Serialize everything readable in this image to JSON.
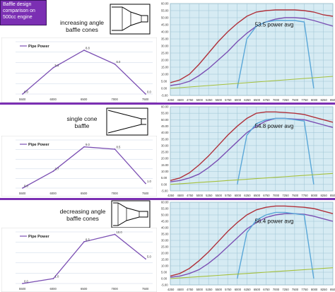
{
  "title_box": {
    "lines": [
      "Baffle design",
      "comparison on",
      "500cc engine"
    ]
  },
  "colors": {
    "purple": "#7b4fb3",
    "divider": "#7b2fb3",
    "red": "#b0303a",
    "blue": "#3f8fca",
    "lightblue": "#5aa7d8",
    "green": "#a5c03c",
    "rightbg": "#d6ebf3",
    "leftgrid": "#c9d4e6"
  },
  "sections": [
    {
      "label_lines": [
        "increasing angle",
        "baffle cones"
      ],
      "cone_icon": "increasing-angle-cone-icon",
      "annotation": "53.5 power avg",
      "left_chart": {
        "type": "line",
        "legend": "Pipe Power",
        "categories": [
          "5500",
          "6000",
          "6500",
          "7000",
          "7500"
        ],
        "values": [
          0.0,
          5.3,
          8.8,
          6.0,
          0.0
        ],
        "value_labels": [
          "0.0",
          "5.3",
          "8.8",
          "6.0",
          "0.0"
        ]
      }
    },
    {
      "label_lines": [
        "single cone",
        "baffle"
      ],
      "cone_icon": "single-cone-icon",
      "annotation": "54.8 power avg",
      "left_chart": {
        "type": "line",
        "legend": "Pipe Power",
        "categories": [
          "5500",
          "6000",
          "6500",
          "7000",
          "7500"
        ],
        "values": [
          0.0,
          3.7,
          9.0,
          8.5,
          1.0
        ],
        "value_labels": [
          "0.0",
          "3.7",
          "9.0",
          "8.5",
          "1.0"
        ]
      }
    },
    {
      "label_lines": [
        "decreasing angle",
        "baffle cones"
      ],
      "cone_icon": "decreasing-angle-cone-icon",
      "annotation": "56.4 power avg",
      "left_chart": {
        "type": "line",
        "legend": "Pipe Power",
        "categories": [
          "5500",
          "6000",
          "6500",
          "7000",
          "7500"
        ],
        "values": [
          0.0,
          1.0,
          8.5,
          10.0,
          5.0
        ],
        "value_labels": [
          "0.0",
          "1.0",
          "8.5",
          "10.0",
          "5.0"
        ]
      }
    }
  ],
  "right_chart_axis": {
    "y_ticks": [
      "60.00",
      "55.00",
      "50.00",
      "45.00",
      "40.00",
      "35.00",
      "30.00",
      "25.00",
      "20.00",
      "15.00",
      "10.00",
      "5.00",
      "0.00",
      "-5.00"
    ],
    "x_ticks": [
      "4250",
      "4500",
      "4750",
      "5000",
      "5250",
      "5500",
      "5750",
      "6000",
      "6250",
      "6500",
      "6750",
      "7000",
      "7250",
      "7500",
      "7750",
      "8000",
      "8250",
      "8500"
    ]
  },
  "chart_data": [
    {
      "type": "line",
      "title": "",
      "legend": [
        "Pipe Power"
      ],
      "categories": [
        "5500",
        "6000",
        "6500",
        "7000",
        "7500"
      ],
      "series": [
        {
          "name": "Pipe Power",
          "values": [
            0.0,
            5.3,
            8.8,
            6.0,
            0.0
          ]
        }
      ]
    },
    {
      "type": "line",
      "title": "",
      "legend": [
        "Pipe Power"
      ],
      "categories": [
        "5500",
        "6000",
        "6500",
        "7000",
        "7500"
      ],
      "series": [
        {
          "name": "Pipe Power",
          "values": [
            0.0,
            3.7,
            9.0,
            8.5,
            1.0
          ]
        }
      ]
    },
    {
      "type": "line",
      "title": "",
      "legend": [
        "Pipe Power"
      ],
      "categories": [
        "5500",
        "6000",
        "6500",
        "7000",
        "7500"
      ],
      "series": [
        {
          "name": "Pipe Power",
          "values": [
            0.0,
            1.0,
            8.5,
            10.0,
            5.0
          ]
        }
      ]
    },
    {
      "type": "line",
      "annotation": "53.5 power avg",
      "x": [
        4250,
        4500,
        4750,
        5000,
        5250,
        5500,
        5750,
        6000,
        6250,
        6500,
        6750,
        7000,
        7250,
        7500,
        7750,
        8000,
        8250,
        8500
      ],
      "ylim": [
        -5,
        60
      ],
      "series": [
        {
          "values": [
            4,
            6,
            10,
            17,
            25,
            33,
            40,
            46,
            51,
            54,
            55,
            55.5,
            55.5,
            55.5,
            55,
            54,
            52,
            51
          ]
        },
        {
          "values": [
            2,
            3,
            5,
            9,
            14,
            20,
            26,
            33,
            39,
            44,
            47,
            49,
            50,
            50,
            49.5,
            48,
            46,
            44
          ]
        },
        {
          "values": [
            null,
            null,
            null,
            null,
            null,
            null,
            null,
            0,
            35,
            44,
            47,
            48,
            48,
            48,
            47,
            0,
            null,
            null
          ]
        },
        {
          "values": [
            0,
            0.5,
            1,
            1.5,
            2,
            2.5,
            3,
            3.5,
            4,
            4.5,
            5,
            5.5,
            6,
            6.5,
            7,
            7.5,
            8,
            8.5
          ]
        }
      ]
    },
    {
      "type": "line",
      "annotation": "54.8 power avg",
      "x": [
        4250,
        4500,
        4750,
        5000,
        5250,
        5500,
        5750,
        6000,
        6250,
        6500,
        6750,
        7000,
        7250,
        7500,
        7750,
        8000,
        8250,
        8500
      ],
      "ylim": [
        -5,
        60
      ],
      "series": [
        {
          "values": [
            3,
            5,
            9,
            15,
            22,
            30,
            38,
            45,
            51,
            55,
            56,
            56,
            55.5,
            55,
            54,
            52,
            50,
            48
          ]
        },
        {
          "values": [
            2,
            3,
            5,
            8,
            13,
            19,
            26,
            33,
            40,
            45,
            49,
            51,
            51,
            50.5,
            50,
            48,
            46,
            44
          ]
        },
        {
          "values": [
            null,
            null,
            null,
            null,
            null,
            null,
            null,
            0,
            38,
            47,
            50,
            51,
            51,
            50,
            49,
            0,
            null,
            null
          ]
        },
        {
          "values": [
            0,
            0.5,
            1,
            1.5,
            2,
            2.5,
            3,
            3.5,
            4,
            4.5,
            5,
            5.5,
            6,
            6.5,
            7,
            7.5,
            8,
            8.5
          ]
        }
      ]
    },
    {
      "type": "line",
      "annotation": "56.4 power avg",
      "x": [
        4250,
        4500,
        4750,
        5000,
        5250,
        5500,
        5750,
        6000,
        6250,
        6500,
        6750,
        7000,
        7250,
        7500,
        7750,
        8000,
        8250,
        8500
      ],
      "ylim": [
        -5,
        60
      ],
      "series": [
        {
          "values": [
            2,
            4,
            8,
            14,
            21,
            29,
            37,
            44,
            50,
            54,
            56,
            57,
            57,
            56.5,
            56,
            55,
            53,
            51
          ]
        },
        {
          "values": [
            1,
            2,
            4,
            7,
            12,
            18,
            25,
            32,
            39,
            44,
            48,
            50,
            51,
            51,
            50.5,
            49,
            47,
            45
          ]
        },
        {
          "values": [
            null,
            null,
            null,
            null,
            null,
            null,
            null,
            0,
            36,
            46,
            50,
            52,
            52,
            51,
            50,
            0,
            null,
            null
          ]
        },
        {
          "values": [
            0,
            0.5,
            1,
            1.5,
            2,
            2.5,
            3,
            3.5,
            4,
            4.5,
            5,
            5.5,
            6,
            6.5,
            7,
            7.5,
            8,
            8.5
          ]
        }
      ]
    }
  ]
}
